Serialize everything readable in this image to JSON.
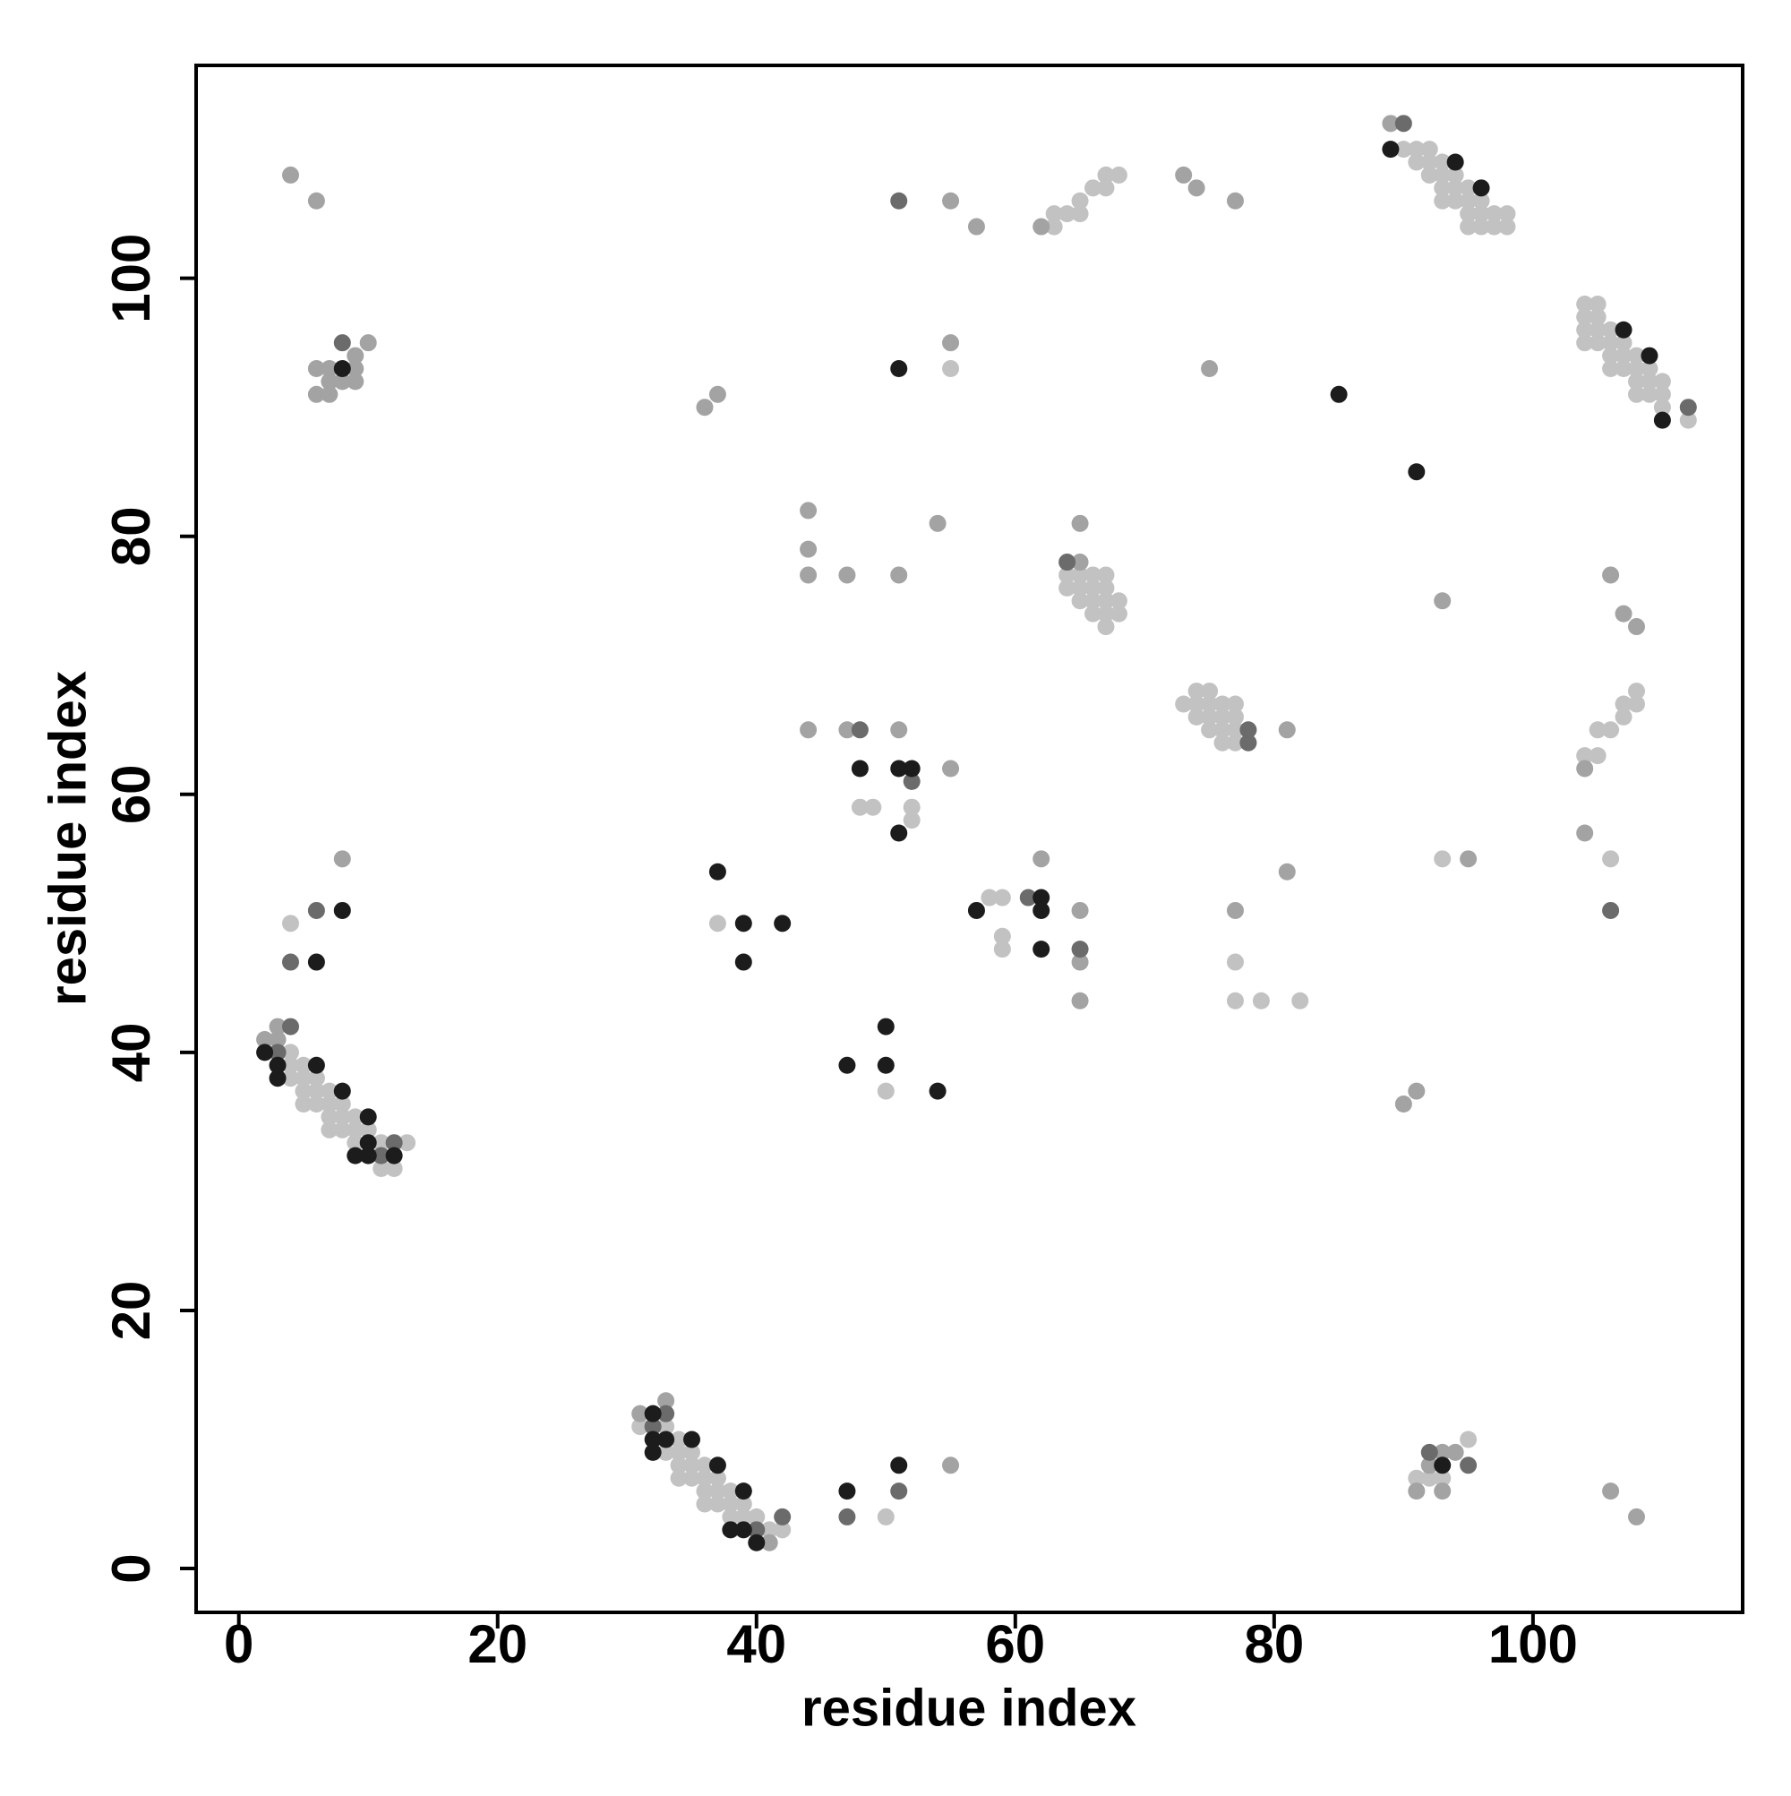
{
  "chart_data": {
    "type": "scatter",
    "x_label": "residue index",
    "y_label": "residue index",
    "xlim": [
      -3.3,
      116.2
    ],
    "ylim": [
      -3.4,
      116.5
    ],
    "xticks": [
      0,
      20,
      40,
      60,
      80,
      100
    ],
    "yticks": [
      0,
      20,
      40,
      60,
      80,
      100
    ],
    "grid": false,
    "series": [
      {
        "color": "#c2c2c2",
        "x": [
          4,
          4,
          5,
          4,
          5,
          6,
          5,
          6,
          7,
          5,
          6,
          7,
          8,
          7,
          8,
          9,
          7,
          8,
          9,
          10,
          9,
          11,
          13,
          11,
          12,
          4,
          31,
          33,
          34,
          33,
          34,
          35,
          34,
          35,
          36,
          34,
          35,
          36,
          37,
          36,
          37,
          38,
          36,
          37,
          38,
          39,
          38,
          39,
          40,
          41,
          42,
          50,
          95,
          91,
          92,
          93,
          50,
          37,
          48,
          49,
          52,
          52,
          58,
          59,
          59,
          59,
          64,
          65,
          66,
          67,
          64,
          65,
          66,
          67,
          65,
          66,
          67,
          68,
          66,
          67,
          68,
          67,
          74,
          75,
          73,
          74,
          75,
          76,
          77,
          74,
          75,
          76,
          77,
          75,
          76,
          77,
          76,
          77,
          77,
          77,
          79,
          82,
          63,
          63,
          64,
          65,
          65,
          66,
          67,
          67,
          68,
          55,
          90,
          91,
          92,
          91,
          92,
          93,
          92,
          93,
          94,
          93,
          94,
          95,
          93,
          94,
          95,
          96,
          95,
          96,
          97,
          98,
          95,
          96,
          97,
          98,
          104,
          105,
          104,
          105,
          104,
          105,
          106,
          104,
          105,
          106,
          107,
          106,
          107,
          108,
          106,
          107,
          108,
          109,
          108,
          109,
          110,
          108,
          109,
          110,
          110,
          112,
          108,
          107,
          108,
          107,
          105,
          106,
          104,
          105,
          106,
          93
        ],
        "values": [
          40,
          39,
          39,
          38,
          38,
          38,
          37,
          37,
          37,
          36,
          36,
          36,
          36,
          35,
          35,
          35,
          34,
          34,
          34,
          34,
          33,
          33,
          33,
          31,
          31,
          50,
          11,
          11,
          10,
          9,
          9,
          9,
          8,
          8,
          8,
          7,
          7,
          7,
          7,
          6,
          6,
          6,
          5,
          5,
          5,
          5,
          4,
          4,
          4,
          3,
          3,
          4,
          10,
          7,
          7,
          7,
          37,
          50,
          59,
          59,
          59,
          58,
          52,
          52,
          49,
          48,
          77,
          77,
          77,
          77,
          76,
          76,
          76,
          76,
          75,
          75,
          75,
          75,
          74,
          74,
          74,
          73,
          68,
          68,
          67,
          67,
          67,
          67,
          67,
          66,
          66,
          66,
          66,
          65,
          65,
          65,
          64,
          64,
          47,
          44,
          44,
          44,
          104,
          105,
          105,
          105,
          106,
          107,
          107,
          108,
          108,
          93,
          110,
          110,
          110,
          109,
          109,
          109,
          108,
          108,
          108,
          107,
          107,
          107,
          106,
          106,
          106,
          106,
          105,
          105,
          105,
          105,
          104,
          104,
          104,
          104,
          98,
          98,
          97,
          97,
          96,
          96,
          96,
          95,
          95,
          95,
          95,
          94,
          94,
          94,
          93,
          93,
          93,
          93,
          92,
          92,
          92,
          91,
          91,
          91,
          90,
          89,
          68,
          67,
          67,
          66,
          65,
          65,
          63,
          63,
          55,
          55
        ]
      },
      {
        "color": "#a3a3a3",
        "x": [
          4,
          6,
          10,
          6,
          7,
          9,
          9,
          7,
          8,
          9,
          6,
          7,
          3,
          2,
          3,
          8,
          33,
          31,
          41,
          55,
          92,
          93,
          94,
          91,
          93,
          106,
          108,
          44,
          47,
          51,
          55,
          44,
          44,
          44,
          47,
          51,
          54,
          62,
          65,
          65,
          65,
          65,
          65,
          81,
          81,
          77,
          55,
          57,
          62,
          73,
          74,
          77,
          55,
          75,
          36,
          37,
          89,
          106,
          107,
          108,
          93,
          104,
          104,
          95,
          90,
          91
        ],
        "values": [
          108,
          106,
          95,
          93,
          93,
          93,
          94,
          92,
          92,
          92,
          91,
          91,
          42,
          41,
          41,
          55,
          13,
          12,
          2,
          8,
          8,
          9,
          9,
          6,
          6,
          6,
          4,
          65,
          65,
          65,
          62,
          82,
          79,
          77,
          77,
          77,
          81,
          55,
          51,
          47,
          44,
          81,
          78,
          65,
          54,
          51,
          106,
          104,
          104,
          108,
          107,
          106,
          95,
          93,
          90,
          91,
          112,
          77,
          74,
          73,
          75,
          62,
          57,
          55,
          36,
          37
        ]
      },
      {
        "color": "#6b6b6b",
        "x": [
          8,
          4,
          3,
          12,
          11,
          6,
          4,
          33,
          32,
          42,
          40,
          47,
          51,
          92,
          95,
          48,
          52,
          61,
          65,
          64,
          78,
          78,
          51,
          90,
          112,
          106
        ],
        "values": [
          95,
          42,
          40,
          33,
          32,
          51,
          47,
          12,
          11,
          4,
          3,
          4,
          6,
          9,
          8,
          65,
          61,
          52,
          48,
          78,
          65,
          64,
          106,
          112,
          90,
          51
        ]
      },
      {
        "color": "#1c1c1c",
        "x": [
          8,
          2,
          3,
          6,
          3,
          8,
          10,
          10,
          9,
          10,
          12,
          8,
          6,
          32,
          32,
          33,
          35,
          32,
          37,
          39,
          38,
          39,
          40,
          47,
          51,
          93,
          47,
          50,
          50,
          54,
          37,
          39,
          42,
          39,
          48,
          51,
          52,
          51,
          57,
          62,
          62,
          62,
          51,
          85,
          91,
          89,
          94,
          96,
          107,
          109,
          110
        ],
        "values": [
          93,
          40,
          39,
          39,
          38,
          37,
          35,
          33,
          32,
          32,
          32,
          51,
          47,
          12,
          10,
          10,
          10,
          9,
          8,
          6,
          3,
          3,
          2,
          6,
          8,
          8,
          39,
          39,
          42,
          37,
          54,
          50,
          50,
          47,
          62,
          62,
          62,
          57,
          51,
          52,
          51,
          48,
          93,
          91,
          85,
          110,
          109,
          107,
          96,
          94,
          89
        ]
      }
    ]
  }
}
